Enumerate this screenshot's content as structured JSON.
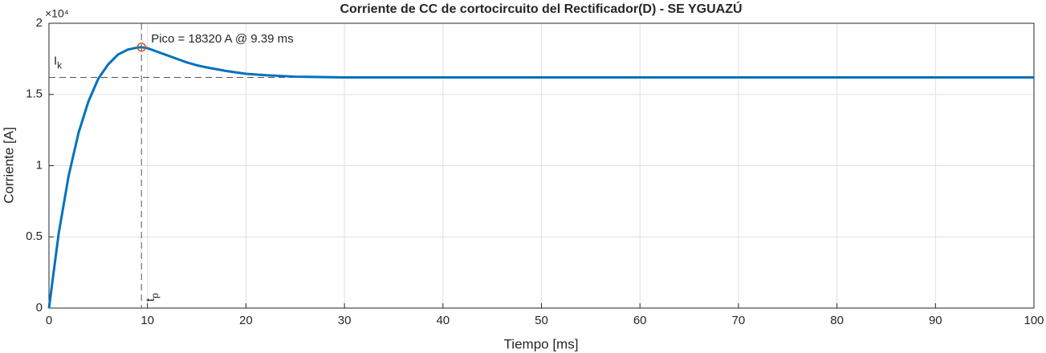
{
  "chart_data": {
    "type": "line",
    "title": "Corriente de CC de cortocircuito del Rectificador(D) - SE YGUAZÚ",
    "x_label": "Tiempo [ms]",
    "y_label": "Corriente [A]",
    "y_exponent": "×10⁴",
    "x": [
      0,
      1,
      2,
      3,
      4,
      5,
      6,
      7,
      8,
      9,
      9.39,
      10,
      11,
      12,
      13,
      14,
      15,
      16,
      18,
      20,
      22,
      25,
      30,
      40,
      50,
      60,
      70,
      80,
      90,
      100
    ],
    "series": [
      {
        "color": "#0072bd",
        "values": [
          0,
          0.53,
          0.93,
          1.23,
          1.45,
          1.61,
          1.71,
          1.78,
          1.815,
          1.83,
          1.832,
          1.825,
          1.8,
          1.775,
          1.75,
          1.725,
          1.705,
          1.69,
          1.665,
          1.645,
          1.635,
          1.625,
          1.62,
          1.62,
          1.62,
          1.62,
          1.62,
          1.62,
          1.62,
          1.62
        ]
      }
    ],
    "peak": {
      "x": 9.39,
      "y": 1.832,
      "color": "#d95319",
      "text": "Pico = 18320 A @ 9.39 ms"
    },
    "hline": {
      "value": 1.62,
      "label": "I",
      "sub": "k"
    },
    "vline": {
      "value": 9.39,
      "label": "t",
      "sub": "p"
    },
    "xlim": [
      0,
      100
    ],
    "xticks": [
      0,
      10,
      20,
      30,
      40,
      50,
      60,
      70,
      80,
      90,
      100
    ],
    "ylim": [
      0,
      2
    ],
    "yticks": [
      0,
      0.5,
      1,
      1.5,
      2
    ],
    "grid": true
  }
}
